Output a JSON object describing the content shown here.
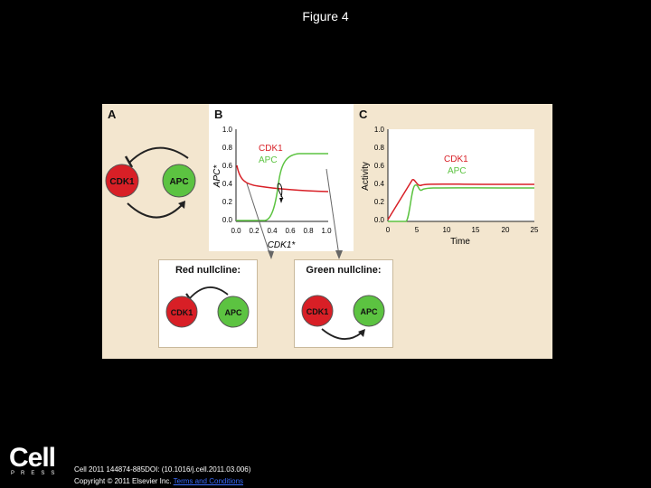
{
  "slide": {
    "title": "Figure 4"
  },
  "colors": {
    "cdk1_red": "#d81f26",
    "apc_green": "#5cc341",
    "figure_bg": "#f3e6cf"
  },
  "panels": {
    "a": {
      "label": "A",
      "node1": "CDK1",
      "node2": "APC"
    },
    "b": {
      "label": "B",
      "legend_cdk1": "CDK1",
      "legend_apc": "APC",
      "ylabel": "APC*",
      "xlabel": "CDK1*",
      "yticks": [
        "1.0",
        "0.8",
        "0.6",
        "0.4",
        "0.2",
        "0.0"
      ],
      "xticks": [
        "0.0",
        "0.2",
        "0.4",
        "0.6",
        "0.8",
        "1.0"
      ]
    },
    "c": {
      "label": "C",
      "legend_cdk1": "CDK1",
      "legend_apc": "APC",
      "ylabel": "Activity",
      "xlabel": "Time",
      "yticks": [
        "1.0",
        "0.8",
        "0.6",
        "0.4",
        "0.2",
        "0.0"
      ],
      "xticks": [
        "0",
        "5",
        "10",
        "15",
        "20",
        "25"
      ]
    }
  },
  "nullclines": {
    "red": {
      "title": "Red nullcline:",
      "node1": "CDK1",
      "node2": "APC"
    },
    "green": {
      "title": "Green nullcline:",
      "node1": "CDK1",
      "node2": "APC"
    }
  },
  "footer": {
    "logo": "Cell",
    "press": "PRESS",
    "citation": "Cell 2011 144874-885DOI: (10.1016/j.cell.2011.03.006)",
    "copyright": "Copyright © 2011 Elsevier Inc.",
    "terms_link": "Terms and Conditions"
  }
}
